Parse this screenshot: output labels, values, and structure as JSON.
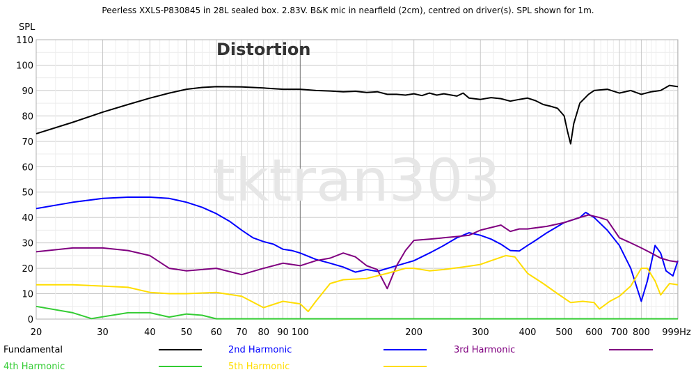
{
  "chart_data": {
    "type": "line",
    "title": "Peerless XXLS-P830845 in 28L sealed box. 2.83V. B&K mic in nearfield (2cm), centred on driver(s). SPL shown for 1m.",
    "annotation": "Distortion",
    "watermark": "tktran303",
    "ylabel": "SPL",
    "xlim": [
      20,
      1000
    ],
    "ylim": [
      0,
      110
    ],
    "x_scale": "log",
    "grid": true,
    "legend_position": "bottom",
    "x_ticks": [
      {
        "value": 20,
        "label": "20"
      },
      {
        "value": 30,
        "label": "30"
      },
      {
        "value": 40,
        "label": "40"
      },
      {
        "value": 50,
        "label": "50"
      },
      {
        "value": 60,
        "label": "60"
      },
      {
        "value": 70,
        "label": "70"
      },
      {
        "value": 80,
        "label": "80"
      },
      {
        "value": 90,
        "label": "90"
      },
      {
        "value": 100,
        "label": "100"
      },
      {
        "value": 200,
        "label": "200"
      },
      {
        "value": 300,
        "label": "300"
      },
      {
        "value": 400,
        "label": "400"
      },
      {
        "value": 500,
        "label": "500"
      },
      {
        "value": 600,
        "label": "600"
      },
      {
        "value": 700,
        "label": "700"
      },
      {
        "value": 800,
        "label": "800"
      },
      {
        "value": 999,
        "label": "999Hz"
      }
    ],
    "y_ticks": [
      {
        "value": 0,
        "label": "0"
      },
      {
        "value": 10,
        "label": "10"
      },
      {
        "value": 20,
        "label": "20"
      },
      {
        "value": 30,
        "label": "30"
      },
      {
        "value": 40,
        "label": "40"
      },
      {
        "value": 50,
        "label": "50"
      },
      {
        "value": 60,
        "label": "60"
      },
      {
        "value": 70,
        "label": "70"
      },
      {
        "value": 80,
        "label": "80"
      },
      {
        "value": 90,
        "label": "90"
      },
      {
        "value": 100,
        "label": "100"
      },
      {
        "value": 110,
        "label": "110"
      }
    ],
    "series": [
      {
        "name": "Fundamental",
        "color": "#000000",
        "points": [
          [
            20,
            73
          ],
          [
            25,
            77.5
          ],
          [
            30,
            81.5
          ],
          [
            35,
            84.5
          ],
          [
            40,
            87
          ],
          [
            45,
            89
          ],
          [
            50,
            90.5
          ],
          [
            55,
            91.2
          ],
          [
            60,
            91.5
          ],
          [
            70,
            91.4
          ],
          [
            80,
            91
          ],
          [
            90,
            90.5
          ],
          [
            100,
            90.5
          ],
          [
            110,
            90
          ],
          [
            120,
            89.8
          ],
          [
            130,
            89.5
          ],
          [
            140,
            89.7
          ],
          [
            150,
            89.2
          ],
          [
            160,
            89.5
          ],
          [
            170,
            88.5
          ],
          [
            180,
            88.5
          ],
          [
            190,
            88.2
          ],
          [
            200,
            88.7
          ],
          [
            210,
            88
          ],
          [
            220,
            89
          ],
          [
            230,
            88.2
          ],
          [
            240,
            88.7
          ],
          [
            260,
            87.8
          ],
          [
            270,
            89
          ],
          [
            280,
            87
          ],
          [
            300,
            86.5
          ],
          [
            320,
            87.2
          ],
          [
            340,
            86.8
          ],
          [
            360,
            85.8
          ],
          [
            380,
            86.5
          ],
          [
            400,
            87
          ],
          [
            420,
            86
          ],
          [
            440,
            84.5
          ],
          [
            460,
            83.8
          ],
          [
            480,
            83
          ],
          [
            500,
            80
          ],
          [
            510,
            74
          ],
          [
            520,
            69
          ],
          [
            530,
            77
          ],
          [
            550,
            85
          ],
          [
            580,
            88.5
          ],
          [
            600,
            90
          ],
          [
            650,
            90.5
          ],
          [
            700,
            89
          ],
          [
            750,
            90
          ],
          [
            800,
            88.5
          ],
          [
            850,
            89.5
          ],
          [
            900,
            90
          ],
          [
            950,
            92
          ],
          [
            1000,
            91.5
          ]
        ]
      },
      {
        "name": "2nd Harmonic",
        "color": "#0000ff",
        "points": [
          [
            20,
            43.5
          ],
          [
            25,
            46
          ],
          [
            30,
            47.5
          ],
          [
            35,
            48
          ],
          [
            40,
            48
          ],
          [
            45,
            47.5
          ],
          [
            50,
            46
          ],
          [
            55,
            44
          ],
          [
            60,
            41.5
          ],
          [
            65,
            38.5
          ],
          [
            70,
            35
          ],
          [
            75,
            32
          ],
          [
            80,
            30.5
          ],
          [
            85,
            29.5
          ],
          [
            90,
            27.5
          ],
          [
            95,
            27
          ],
          [
            100,
            26
          ],
          [
            110,
            23.5
          ],
          [
            120,
            22
          ],
          [
            130,
            20.5
          ],
          [
            140,
            18.5
          ],
          [
            150,
            19.5
          ],
          [
            160,
            18.8
          ],
          [
            180,
            21
          ],
          [
            200,
            23
          ],
          [
            220,
            26
          ],
          [
            240,
            29
          ],
          [
            260,
            32
          ],
          [
            280,
            34
          ],
          [
            300,
            33
          ],
          [
            320,
            31.5
          ],
          [
            340,
            29.5
          ],
          [
            360,
            27
          ],
          [
            380,
            26.8
          ],
          [
            400,
            29
          ],
          [
            420,
            31
          ],
          [
            450,
            34
          ],
          [
            500,
            38
          ],
          [
            550,
            40
          ],
          [
            570,
            42
          ],
          [
            600,
            40
          ],
          [
            650,
            35
          ],
          [
            700,
            29
          ],
          [
            750,
            20
          ],
          [
            800,
            7
          ],
          [
            830,
            15
          ],
          [
            870,
            29
          ],
          [
            900,
            26
          ],
          [
            930,
            19
          ],
          [
            970,
            17
          ],
          [
            1000,
            23
          ]
        ]
      },
      {
        "name": "3rd Harmonic",
        "color": "#800080",
        "points": [
          [
            20,
            26.5
          ],
          [
            25,
            28
          ],
          [
            30,
            28
          ],
          [
            35,
            27
          ],
          [
            40,
            25
          ],
          [
            45,
            20
          ],
          [
            50,
            19
          ],
          [
            55,
            19.5
          ],
          [
            60,
            20
          ],
          [
            70,
            17.5
          ],
          [
            80,
            20
          ],
          [
            90,
            22
          ],
          [
            100,
            21
          ],
          [
            110,
            23
          ],
          [
            120,
            24
          ],
          [
            130,
            26
          ],
          [
            140,
            24.5
          ],
          [
            150,
            21
          ],
          [
            160,
            19.5
          ],
          [
            170,
            12
          ],
          [
            180,
            21
          ],
          [
            190,
            27
          ],
          [
            200,
            31
          ],
          [
            220,
            31.5
          ],
          [
            240,
            32
          ],
          [
            260,
            32.5
          ],
          [
            280,
            33
          ],
          [
            300,
            35
          ],
          [
            340,
            37
          ],
          [
            360,
            34.5
          ],
          [
            380,
            35.5
          ],
          [
            400,
            35.5
          ],
          [
            450,
            36.5
          ],
          [
            500,
            38
          ],
          [
            550,
            40
          ],
          [
            580,
            41
          ],
          [
            620,
            40
          ],
          [
            650,
            39
          ],
          [
            700,
            32
          ],
          [
            750,
            30
          ],
          [
            800,
            28
          ],
          [
            850,
            26
          ],
          [
            900,
            24
          ],
          [
            950,
            23
          ],
          [
            1000,
            22.5
          ]
        ]
      },
      {
        "name": "4th Harmonic",
        "color": "#33cc33",
        "points": [
          [
            20,
            5
          ],
          [
            25,
            2.5
          ],
          [
            28,
            0.2
          ],
          [
            35,
            2.5
          ],
          [
            40,
            2.5
          ],
          [
            45,
            0.8
          ],
          [
            50,
            2
          ],
          [
            55,
            1.5
          ],
          [
            60,
            0.1
          ],
          [
            1000,
            0.1
          ]
        ]
      },
      {
        "name": "5th Harmonic",
        "color": "#ffdd00",
        "points": [
          [
            20,
            13.5
          ],
          [
            25,
            13.5
          ],
          [
            30,
            13
          ],
          [
            35,
            12.5
          ],
          [
            40,
            10.5
          ],
          [
            45,
            10
          ],
          [
            50,
            10
          ],
          [
            60,
            10.5
          ],
          [
            70,
            9
          ],
          [
            80,
            4.5
          ],
          [
            90,
            7
          ],
          [
            100,
            6
          ],
          [
            105,
            3
          ],
          [
            110,
            7
          ],
          [
            120,
            14
          ],
          [
            130,
            15.5
          ],
          [
            150,
            16
          ],
          [
            170,
            18
          ],
          [
            190,
            20
          ],
          [
            200,
            20
          ],
          [
            220,
            19
          ],
          [
            240,
            19.5
          ],
          [
            270,
            20.5
          ],
          [
            300,
            21.5
          ],
          [
            320,
            23
          ],
          [
            350,
            25
          ],
          [
            370,
            24.5
          ],
          [
            400,
            18
          ],
          [
            440,
            14
          ],
          [
            480,
            10
          ],
          [
            520,
            6.5
          ],
          [
            560,
            7
          ],
          [
            600,
            6.5
          ],
          [
            620,
            4
          ],
          [
            660,
            7
          ],
          [
            700,
            9
          ],
          [
            750,
            13
          ],
          [
            800,
            20
          ],
          [
            830,
            20
          ],
          [
            870,
            15
          ],
          [
            900,
            9.5
          ],
          [
            950,
            14
          ],
          [
            1000,
            13.5
          ]
        ]
      }
    ]
  }
}
